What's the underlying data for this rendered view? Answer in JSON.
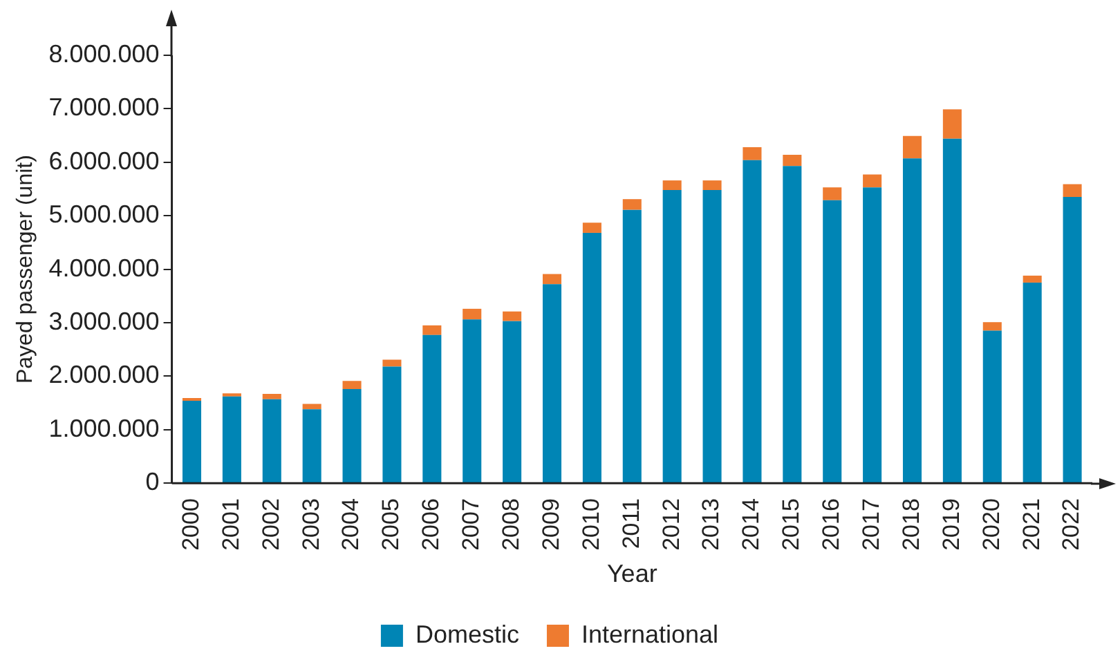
{
  "chart_data": {
    "type": "bar",
    "stacked": true,
    "xlabel": "Year",
    "ylabel": "Payed passenger (unit)",
    "categories": [
      "2000",
      "2001",
      "2002",
      "2003",
      "2004",
      "2005",
      "2006",
      "2007",
      "2008",
      "2009",
      "2010",
      "2011",
      "2012",
      "2013",
      "2014",
      "2015",
      "2016",
      "2017",
      "2018",
      "2019",
      "2020",
      "2021",
      "2022"
    ],
    "series": [
      {
        "name": "Domestic",
        "color": "#0085b5",
        "values": [
          1540000,
          1620000,
          1570000,
          1380000,
          1760000,
          2180000,
          2770000,
          3060000,
          3030000,
          3720000,
          4680000,
          5110000,
          5480000,
          5480000,
          6040000,
          5930000,
          5290000,
          5530000,
          6070000,
          6440000,
          2850000,
          3750000,
          5350000
        ]
      },
      {
        "name": "International",
        "color": "#ee7b30",
        "values": [
          50000,
          60000,
          100000,
          100000,
          150000,
          130000,
          180000,
          200000,
          180000,
          190000,
          190000,
          200000,
          180000,
          180000,
          240000,
          210000,
          240000,
          240000,
          420000,
          550000,
          160000,
          130000,
          240000
        ]
      }
    ],
    "ylim": [
      0,
      8000000
    ],
    "yticks": [
      {
        "value": 0,
        "label": "0"
      },
      {
        "value": 1000000,
        "label": "1.000.000"
      },
      {
        "value": 2000000,
        "label": "2.000.000"
      },
      {
        "value": 3000000,
        "label": "3.000.000"
      },
      {
        "value": 4000000,
        "label": "4.000.000"
      },
      {
        "value": 5000000,
        "label": "5.000.000"
      },
      {
        "value": 6000000,
        "label": "6.000.000"
      },
      {
        "value": 7000000,
        "label": "7.000.000"
      },
      {
        "value": 8000000,
        "label": "8.000.000"
      }
    ],
    "grid": false,
    "legend": "bottom"
  }
}
